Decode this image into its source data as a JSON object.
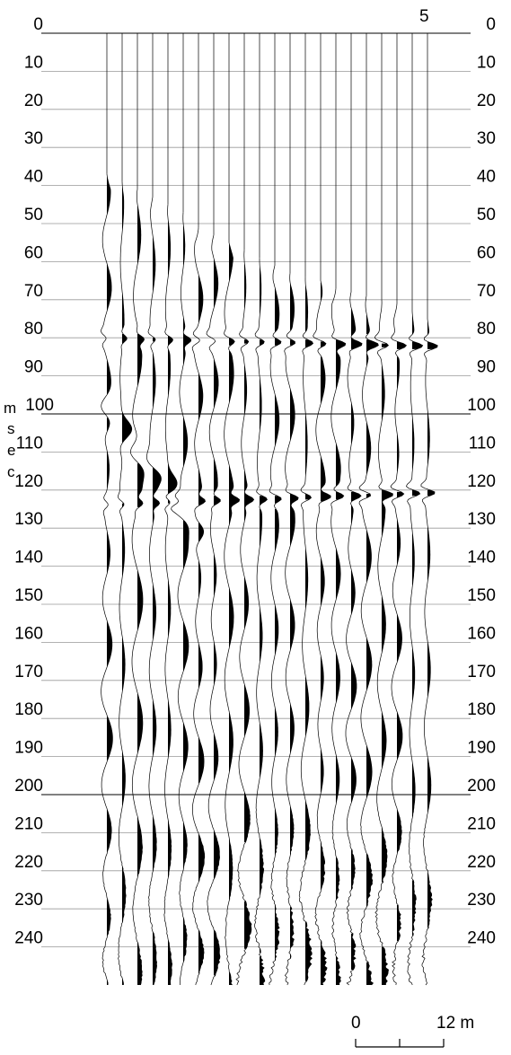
{
  "chart_data": {
    "type": "seismogram",
    "title": "",
    "ylabel": "msec",
    "ylabel_letters": [
      "m",
      "s",
      "e",
      "c"
    ],
    "yticks": [
      0,
      10,
      20,
      30,
      40,
      50,
      60,
      70,
      80,
      90,
      100,
      110,
      120,
      130,
      140,
      150,
      160,
      170,
      180,
      190,
      200,
      210,
      220,
      230,
      240
    ],
    "ylim": [
      0,
      250
    ],
    "top_marker_label": "5",
    "trace_count": 22,
    "first_arrival_msec": [
      37,
      39,
      41,
      43,
      45,
      47,
      51,
      53,
      55,
      57,
      59,
      61,
      63,
      64,
      65,
      67,
      68,
      69,
      70,
      71,
      73,
      75
    ],
    "reflections_msec": [
      81,
      122
    ],
    "scale_bar": {
      "start_label": "0",
      "end_label": "12 m"
    },
    "grid_color": "#999999",
    "trace_color": "#000000"
  }
}
